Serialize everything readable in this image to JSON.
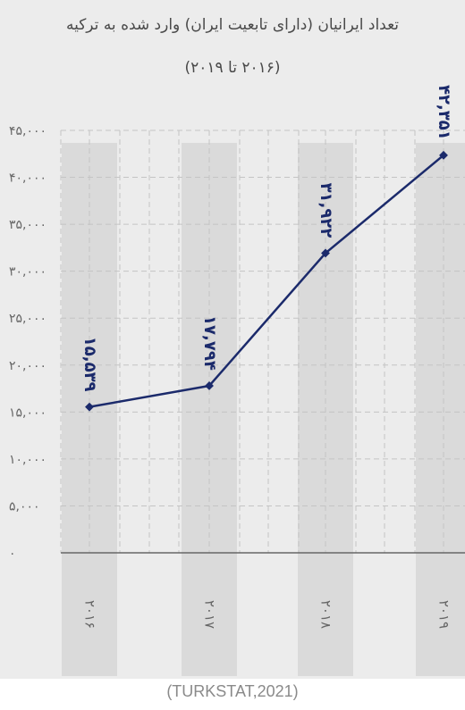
{
  "title": "تعداد ایرانیان (دارای تابعیت ایران) وارد شده به ترکیه",
  "subtitle": "(۲۰۱۶ تا ۲۰۱۹)",
  "source": "(TURKSTAT,2021)",
  "colors": {
    "line": "#1b2a6b",
    "label": "#1b2a6b",
    "card_background": "#ececec",
    "column_band": "#dadada",
    "grid": "#c4c4c4",
    "axis": "#666666",
    "tick_text": "#666666"
  },
  "chart_data": {
    "type": "line",
    "title": "تعداد ایرانیان (دارای تابعیت ایران) وارد شده به ترکیه",
    "subtitle": "(۲۰۱۶ تا ۲۰۱۹)",
    "categories": [
      "2016",
      "2017",
      "2018",
      "2019"
    ],
    "category_labels": [
      "۲۰۱۶",
      "۲۰۱۷",
      "۲۰۱۸",
      "۲۰۱۹"
    ],
    "values": [
      15539,
      17794,
      31922,
      42351
    ],
    "value_labels": [
      "۱۵,۵۳۹",
      "۱۷,۷۹۴",
      "۳۱,۹۲۲",
      "۴۲,۳۵۱"
    ],
    "ylim": [
      0,
      45000
    ],
    "yticks": [
      0,
      5000,
      10000,
      15000,
      20000,
      25000,
      30000,
      35000,
      40000,
      45000
    ],
    "ytick_labels": [
      "۰",
      "۵,۰۰۰",
      "۱۰,۰۰۰",
      "۱۵,۰۰۰",
      "۲۰,۰۰۰",
      "۲۵,۰۰۰",
      "۳۰,۰۰۰",
      "۳۵,۰۰۰",
      "۴۰,۰۰۰",
      "۴۵,۰۰۰"
    ],
    "xlabel": "",
    "ylabel": "",
    "grid": true,
    "legend": "none"
  }
}
